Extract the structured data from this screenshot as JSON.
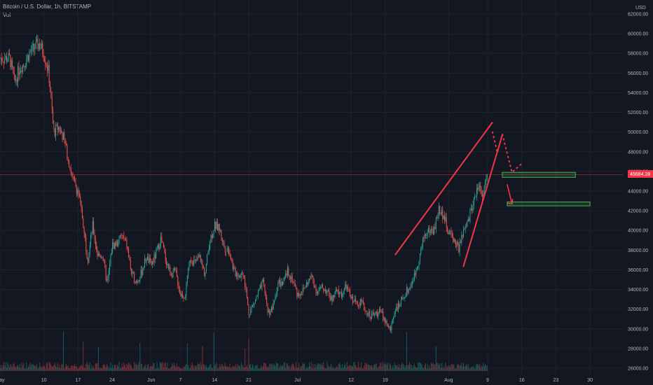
{
  "header": {
    "title": "Bitcoin / U.S. Dollar, 1h, BITSTAMP",
    "volume_label": "Vol"
  },
  "currency": "USD",
  "last_price": "45684.28",
  "colors": {
    "background": "#131722",
    "grid": "#1e222d",
    "up": "#26a69a",
    "down": "#ef5350",
    "annotation": "#f23645",
    "price_line": "#f23645",
    "target_box": "#4caf50"
  },
  "chart_data": {
    "type": "candlestick",
    "title": "Bitcoin / U.S. Dollar, 1h, BITSTAMP",
    "ylabel": "USD",
    "ylim": [
      25500,
      63500
    ],
    "y_ticks": [
      26000,
      28000,
      30000,
      32000,
      34000,
      36000,
      38000,
      40000,
      42000,
      44000,
      46000,
      48000,
      50000,
      52000,
      54000,
      56000,
      58000,
      60000,
      62000
    ],
    "x_ticks": [
      "May",
      "10",
      "17",
      "24",
      "Jun",
      "7",
      "14",
      "21",
      "Jul",
      "12",
      "19",
      "Aug",
      "9",
      "16",
      "23",
      "30"
    ],
    "grid": true,
    "price_path": [
      {
        "date": "May 3",
        "price": 57500
      },
      {
        "date": "May 4",
        "price": 55000
      },
      {
        "date": "May 5",
        "price": 56500
      },
      {
        "date": "May 6",
        "price": 57000
      },
      {
        "date": "May 7",
        "price": 58000
      },
      {
        "date": "May 9",
        "price": 59000
      },
      {
        "date": "May 10",
        "price": 58000
      },
      {
        "date": "May 11",
        "price": 56000
      },
      {
        "date": "May 12",
        "price": 50000
      },
      {
        "date": "May 13",
        "price": 50500
      },
      {
        "date": "May 14",
        "price": 49500
      },
      {
        "date": "May 16",
        "price": 45000
      },
      {
        "date": "May 17",
        "price": 44000
      },
      {
        "date": "May 18",
        "price": 41000
      },
      {
        "date": "May 19",
        "price": 37000
      },
      {
        "date": "May 20",
        "price": 40500
      },
      {
        "date": "May 21",
        "price": 37500
      },
      {
        "date": "May 22",
        "price": 37500
      },
      {
        "date": "May 23",
        "price": 34500
      },
      {
        "date": "May 24",
        "price": 38500
      },
      {
        "date": "May 25",
        "price": 38700
      },
      {
        "date": "May 26",
        "price": 39500
      },
      {
        "date": "May 27",
        "price": 38500
      },
      {
        "date": "May 28",
        "price": 35500
      },
      {
        "date": "May 29",
        "price": 34800
      },
      {
        "date": "May 30",
        "price": 35700
      },
      {
        "date": "May 31",
        "price": 37300
      },
      {
        "date": "Jun 1",
        "price": 36500
      },
      {
        "date": "Jun 2",
        "price": 37600
      },
      {
        "date": "Jun 3",
        "price": 39200
      },
      {
        "date": "Jun 4",
        "price": 37000
      },
      {
        "date": "Jun 5",
        "price": 35600
      },
      {
        "date": "Jun 6",
        "price": 35800
      },
      {
        "date": "Jun 7",
        "price": 33500
      },
      {
        "date": "Jun 8",
        "price": 33400
      },
      {
        "date": "Jun 9",
        "price": 37300
      },
      {
        "date": "Jun 10",
        "price": 36700
      },
      {
        "date": "Jun 11",
        "price": 37300
      },
      {
        "date": "Jun 12",
        "price": 35500
      },
      {
        "date": "Jun 13",
        "price": 39000
      },
      {
        "date": "Jun 14",
        "price": 40500
      },
      {
        "date": "Jun 15",
        "price": 40200
      },
      {
        "date": "Jun 16",
        "price": 38300
      },
      {
        "date": "Jun 17",
        "price": 38000
      },
      {
        "date": "Jun 18",
        "price": 35800
      },
      {
        "date": "Jun 19",
        "price": 35500
      },
      {
        "date": "Jun 20",
        "price": 35600
      },
      {
        "date": "Jun 21",
        "price": 31600
      },
      {
        "date": "Jun 22",
        "price": 32500
      },
      {
        "date": "Jun 23",
        "price": 33700
      },
      {
        "date": "Jun 24",
        "price": 34700
      },
      {
        "date": "Jun 25",
        "price": 31600
      },
      {
        "date": "Jun 26",
        "price": 32200
      },
      {
        "date": "Jun 27",
        "price": 34700
      },
      {
        "date": "Jun 28",
        "price": 34500
      },
      {
        "date": "Jun 29",
        "price": 35900
      },
      {
        "date": "Jun 30",
        "price": 35000
      },
      {
        "date": "Jul 1",
        "price": 33500
      },
      {
        "date": "Jul 2",
        "price": 33800
      },
      {
        "date": "Jul 3",
        "price": 34700
      },
      {
        "date": "Jul 4",
        "price": 35300
      },
      {
        "date": "Jul 5",
        "price": 33700
      },
      {
        "date": "Jul 6",
        "price": 34200
      },
      {
        "date": "Jul 7",
        "price": 33900
      },
      {
        "date": "Jul 8",
        "price": 32900
      },
      {
        "date": "Jul 9",
        "price": 33800
      },
      {
        "date": "Jul 10",
        "price": 33500
      },
      {
        "date": "Jul 11",
        "price": 34300
      },
      {
        "date": "Jul 12",
        "price": 33100
      },
      {
        "date": "Jul 13",
        "price": 32700
      },
      {
        "date": "Jul 14",
        "price": 32800
      },
      {
        "date": "Jul 15",
        "price": 31800
      },
      {
        "date": "Jul 16",
        "price": 31400
      },
      {
        "date": "Jul 17",
        "price": 31500
      },
      {
        "date": "Jul 18",
        "price": 31800
      },
      {
        "date": "Jul 19",
        "price": 30800
      },
      {
        "date": "Jul 20",
        "price": 29800
      },
      {
        "date": "Jul 21",
        "price": 32100
      },
      {
        "date": "Jul 22",
        "price": 32300
      },
      {
        "date": "Jul 23",
        "price": 33600
      },
      {
        "date": "Jul 24",
        "price": 34200
      },
      {
        "date": "Jul 25",
        "price": 35400
      },
      {
        "date": "Jul 26",
        "price": 37300
      },
      {
        "date": "Jul 27",
        "price": 39500
      },
      {
        "date": "Jul 28",
        "price": 40000
      },
      {
        "date": "Jul 29",
        "price": 40000
      },
      {
        "date": "Jul 30",
        "price": 42200
      },
      {
        "date": "Jul 31",
        "price": 41500
      },
      {
        "date": "Aug 1",
        "price": 39800
      },
      {
        "date": "Aug 2",
        "price": 39200
      },
      {
        "date": "Aug 3",
        "price": 38100
      },
      {
        "date": "Aug 4",
        "price": 39700
      },
      {
        "date": "Aug 5",
        "price": 40900
      },
      {
        "date": "Aug 6",
        "price": 42800
      },
      {
        "date": "Aug 7",
        "price": 44600
      },
      {
        "date": "Aug 8",
        "price": 43800
      },
      {
        "date": "Aug 9",
        "price": 45684
      }
    ],
    "annotations": {
      "channel_upper": [
        {
          "date": "Jul 21",
          "price": 37500
        },
        {
          "date": "Aug 10",
          "price": 51000
        }
      ],
      "channel_lower": [
        {
          "date": "Aug 4",
          "price": 36300
        },
        {
          "date": "Aug 12",
          "price": 49700
        }
      ],
      "projected_path": [
        {
          "date": "Aug 10",
          "price": 50000
        },
        {
          "date": "Aug 11",
          "price": 47900
        },
        {
          "date": "Aug 12",
          "price": 49800
        },
        {
          "date": "Aug 14",
          "price": 45900
        },
        {
          "date": "Aug 16",
          "price": 46800
        }
      ],
      "drop_arrow": [
        {
          "date": "Aug 13",
          "price": 44700
        },
        {
          "date": "Aug 14",
          "price": 42700
        }
      ],
      "target_zones": [
        {
          "from": "Aug 12",
          "to": "Aug 27",
          "low": 45400,
          "high": 45900
        },
        {
          "from": "Aug 13",
          "to": "Aug 30",
          "low": 42500,
          "high": 42900
        }
      ]
    }
  }
}
